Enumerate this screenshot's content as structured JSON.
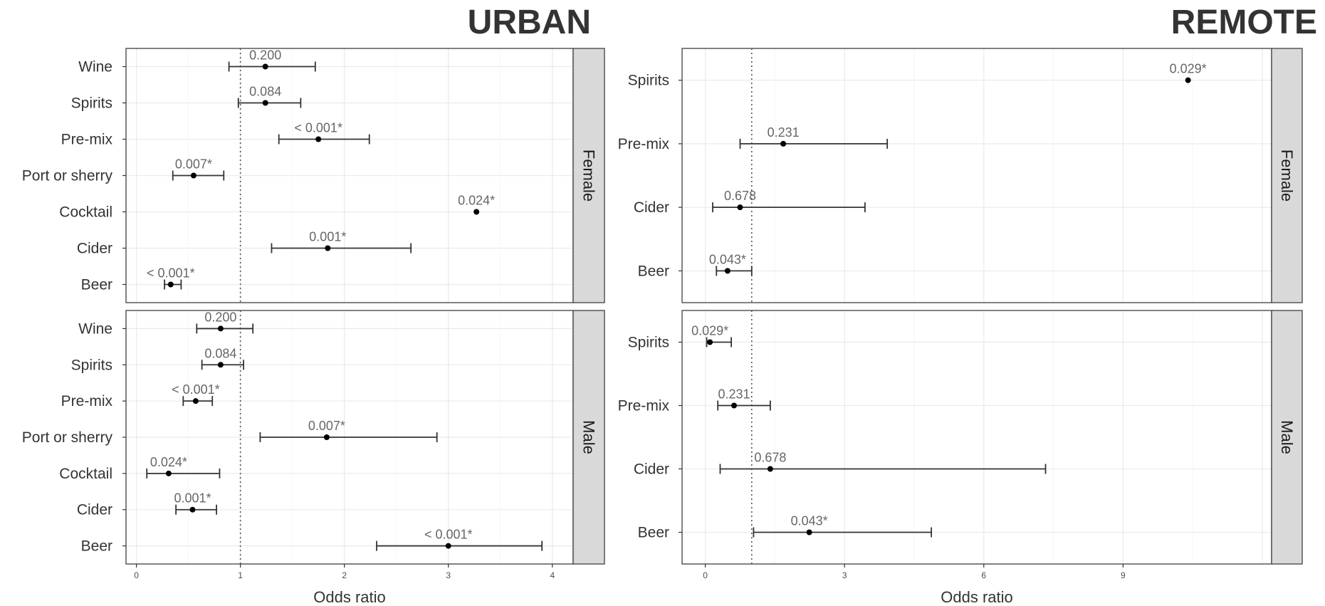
{
  "chart_data": [
    {
      "type": "errorbar",
      "title": "URBAN",
      "xlabel": "Odds ratio",
      "xlim": [
        -0.1,
        4.2
      ],
      "xticks": [
        0,
        1,
        2,
        3,
        4
      ],
      "reference_line": 1,
      "panels": [
        {
          "strip": "Female",
          "categories": [
            "Wine",
            "Spirits",
            "Pre-mix",
            "Port or sherry",
            "Cocktail",
            "Cider",
            "Beer"
          ],
          "estimates": [
            1.24,
            1.24,
            1.75,
            0.55,
            3.27,
            1.84,
            0.33
          ],
          "lower": [
            0.89,
            0.98,
            1.37,
            0.35,
            null,
            1.3,
            0.27
          ],
          "upper": [
            1.72,
            1.58,
            2.24,
            0.84,
            null,
            2.64,
            0.43
          ],
          "p_labels": [
            "0.200",
            "0.084",
            "< 0.001*",
            "0.007*",
            "0.024*",
            "0.001*",
            "< 0.001*"
          ]
        },
        {
          "strip": "Male",
          "categories": [
            "Wine",
            "Spirits",
            "Pre-mix",
            "Port or sherry",
            "Cocktail",
            "Cider",
            "Beer"
          ],
          "estimates": [
            0.81,
            0.81,
            0.57,
            1.83,
            0.31,
            0.54,
            3.0
          ],
          "lower": [
            0.58,
            0.63,
            0.45,
            1.19,
            0.1,
            0.38,
            2.31
          ],
          "upper": [
            1.12,
            1.03,
            0.73,
            2.89,
            0.8,
            0.77,
            3.9
          ],
          "p_labels": [
            "0.200",
            "0.084",
            "< 0.001*",
            "0.007*",
            "0.024*",
            "0.001*",
            "< 0.001*"
          ]
        }
      ]
    },
    {
      "type": "errorbar",
      "title": "REMOTE",
      "xlabel": "Odds ratio",
      "xlim": [
        -0.5,
        12.2
      ],
      "xticks": [
        0,
        3,
        6,
        9
      ],
      "reference_line": 1,
      "panels": [
        {
          "strip": "Female",
          "categories": [
            "Spirits",
            "Pre-mix",
            "Cider",
            "Beer"
          ],
          "estimates": [
            10.4,
            1.68,
            0.75,
            0.48
          ],
          "lower": [
            null,
            0.75,
            0.16,
            0.24
          ],
          "upper": [
            null,
            3.92,
            3.44,
            1.0
          ],
          "p_labels": [
            "0.029*",
            "0.231",
            "0.678",
            "0.043*"
          ]
        },
        {
          "strip": "Male",
          "categories": [
            "Spirits",
            "Pre-mix",
            "Cider",
            "Beer"
          ],
          "estimates": [
            0.1,
            0.62,
            1.4,
            2.24
          ],
          "lower": [
            0.03,
            0.27,
            0.32,
            1.04
          ],
          "upper": [
            0.56,
            1.4,
            7.33,
            4.87
          ],
          "p_labels": [
            "0.029*",
            "0.231",
            "0.678",
            "0.043*"
          ]
        }
      ]
    }
  ]
}
